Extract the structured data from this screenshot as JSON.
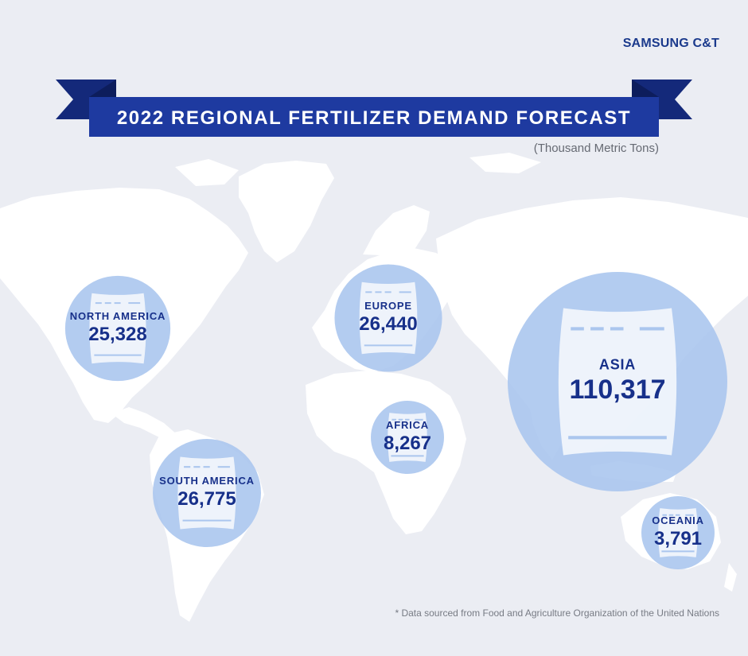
{
  "brand": "SAMSUNG C&T",
  "subtitle": "(Thousand Metric Tons)",
  "footnote": "* Data sourced from Food and Agriculture Organization of the United Nations",
  "colors": {
    "background": "#ebedf3",
    "land": "#ffffff",
    "bubble": "#a9c5ee",
    "bag": "#ffffff",
    "text": "#17308a",
    "banner": "#1e3aa0",
    "banner_tail": "#14297a"
  },
  "icons": {
    "bag": "fertilizer-bag-icon"
  },
  "chart_data": {
    "type": "bubble-map",
    "title": "2022 REGIONAL FERTILIZER DEMAND FORECAST",
    "unit": "(Thousand Metric Tons)",
    "regions": [
      {
        "name": "NORTH AMERICA",
        "label": "25,328",
        "value": 25328
      },
      {
        "name": "EUROPE",
        "label": "26,440",
        "value": 26440
      },
      {
        "name": "ASIA",
        "label": "110,317",
        "value": 110317
      },
      {
        "name": "AFRICA",
        "label": "8,267",
        "value": 8267
      },
      {
        "name": "SOUTH AMERICA",
        "label": "26,775",
        "value": 26775
      },
      {
        "name": "OCEANIA",
        "label": "3,791",
        "value": 3791
      }
    ]
  }
}
